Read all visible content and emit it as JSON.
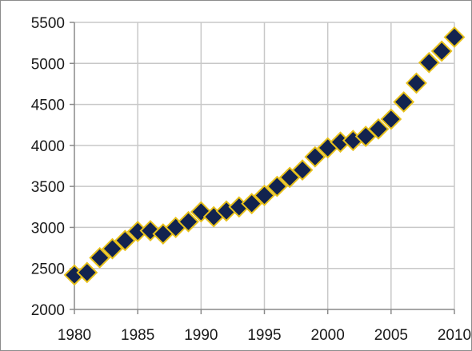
{
  "chart_data": {
    "type": "scatter",
    "title": "",
    "xlabel": "",
    "ylabel": "",
    "xlim": [
      1980,
      2010
    ],
    "ylim": [
      2000,
      5500
    ],
    "x_ticks": [
      1980,
      1985,
      1990,
      1995,
      2000,
      2005,
      2010
    ],
    "y_ticks": [
      2000,
      2500,
      3000,
      3500,
      4000,
      4500,
      5000,
      5500
    ],
    "x_tick_labels": [
      "1980",
      "1985",
      "1990",
      "1995",
      "2000",
      "2005",
      "2010"
    ],
    "y_tick_labels": [
      "2000",
      "2500",
      "3000",
      "3500",
      "4000",
      "4500",
      "5000",
      "5500"
    ],
    "grid": true,
    "legend": "none",
    "marker": {
      "shape": "diamond",
      "fill": "#12234f",
      "edge": "#e8c11a"
    },
    "series": [
      {
        "x": [
          1980,
          1981,
          1982,
          1983,
          1984,
          1985,
          1986,
          1987,
          1988,
          1989,
          1990,
          1991,
          1992,
          1993,
          1994,
          1995,
          1996,
          1997,
          1998,
          1999,
          2000,
          2001,
          2002,
          2003,
          2004,
          2005,
          2006,
          2007,
          2008,
          2009,
          2010
        ],
        "y": [
          2420,
          2450,
          2630,
          2740,
          2840,
          2950,
          2960,
          2920,
          3000,
          3070,
          3190,
          3130,
          3200,
          3250,
          3290,
          3390,
          3500,
          3610,
          3700,
          3860,
          3970,
          4040,
          4060,
          4110,
          4200,
          4320,
          4530,
          4760,
          5010,
          5150,
          5320
        ]
      }
    ]
  }
}
